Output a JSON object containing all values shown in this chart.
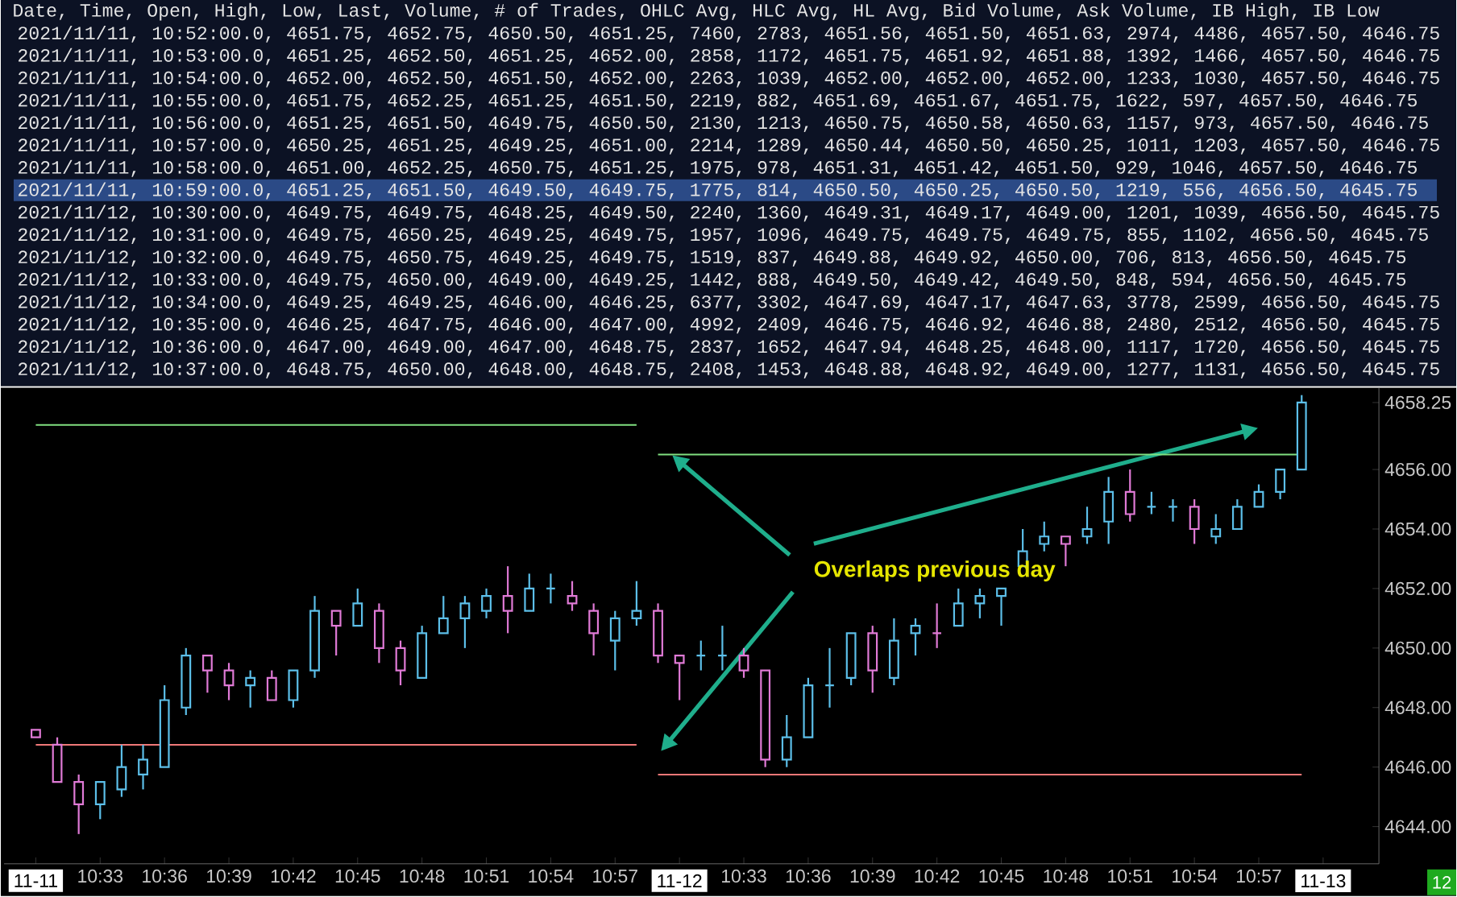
{
  "chart_data": {
    "type": "candlestick",
    "categories": [
      "11-11",
      null,
      null,
      "10:33",
      null,
      null,
      "10:36",
      null,
      null,
      "10:39",
      null,
      null,
      "10:42",
      null,
      null,
      "10:45",
      null,
      null,
      "10:48",
      null,
      null,
      "10:51",
      null,
      null,
      "10:54",
      null,
      null,
      "10:57",
      null,
      null,
      "11-12",
      null,
      null,
      "10:33",
      null,
      null,
      "10:36",
      null,
      null,
      "10:39",
      null,
      null,
      "10:42",
      null,
      null,
      "10:45",
      null,
      null,
      "10:48",
      null,
      null,
      "10:51",
      null,
      null,
      "10:54",
      null,
      null,
      "10:57",
      null,
      null,
      "11-13"
    ],
    "ohlc": [
      [
        4647.25,
        4647.25,
        4647.0,
        4647.0
      ],
      [
        4646.75,
        4647.0,
        4645.5,
        4645.5
      ],
      [
        4645.5,
        4645.75,
        4643.75,
        4644.75
      ],
      [
        4644.75,
        4645.5,
        4644.25,
        4645.5
      ],
      [
        4645.25,
        4646.75,
        4645.0,
        4646.0
      ],
      [
        4645.75,
        4646.75,
        4645.25,
        4646.25
      ],
      [
        4646.0,
        4648.75,
        4646.0,
        4648.25
      ],
      [
        4648.0,
        4650.0,
        4647.75,
        4649.75
      ],
      [
        4649.75,
        4649.75,
        4648.5,
        4649.25
      ],
      [
        4649.25,
        4649.5,
        4648.25,
        4648.75
      ],
      [
        4648.75,
        4649.25,
        4648.0,
        4649.0
      ],
      [
        4649.0,
        4649.25,
        4648.25,
        4648.25
      ],
      [
        4648.25,
        4649.25,
        4648.0,
        4649.25
      ],
      [
        4649.25,
        4651.75,
        4649.0,
        4651.25
      ],
      [
        4651.25,
        4651.25,
        4649.75,
        4650.75
      ],
      [
        4650.75,
        4652.0,
        4650.75,
        4651.5
      ],
      [
        4651.25,
        4651.5,
        4649.5,
        4650.0
      ],
      [
        4650.0,
        4650.25,
        4648.75,
        4649.25
      ],
      [
        4649.0,
        4650.75,
        4649.0,
        4650.5
      ],
      [
        4650.5,
        4651.75,
        4650.5,
        4651.0
      ],
      [
        4651.0,
        4651.75,
        4650.0,
        4651.5
      ],
      [
        4651.25,
        4652.0,
        4651.0,
        4651.75
      ],
      [
        4651.75,
        4652.75,
        4650.5,
        4651.25
      ],
      [
        4651.25,
        4652.5,
        4651.25,
        4652.0
      ],
      [
        4652.0,
        4652.5,
        4651.5,
        4652.0
      ],
      [
        4651.75,
        4652.25,
        4651.25,
        4651.5
      ],
      [
        4651.25,
        4651.5,
        4649.75,
        4650.5
      ],
      [
        4650.25,
        4651.25,
        4649.25,
        4651.0
      ],
      [
        4651.0,
        4652.25,
        4650.75,
        4651.25
      ],
      [
        4651.25,
        4651.5,
        4649.5,
        4649.75
      ],
      [
        4649.75,
        4649.75,
        4648.25,
        4649.5
      ],
      [
        4649.75,
        4650.25,
        4649.25,
        4649.75
      ],
      [
        4649.75,
        4650.75,
        4649.25,
        4649.75
      ],
      [
        4649.75,
        4650.0,
        4649.0,
        4649.25
      ],
      [
        4649.25,
        4649.25,
        4646.0,
        4646.25
      ],
      [
        4646.25,
        4647.75,
        4646.0,
        4647.0
      ],
      [
        4647.0,
        4649.0,
        4647.0,
        4648.75
      ],
      [
        4648.75,
        4650.0,
        4648.0,
        4648.75
      ],
      [
        4649.0,
        4650.5,
        4648.75,
        4650.5
      ],
      [
        4650.5,
        4650.75,
        4648.5,
        4649.25
      ],
      [
        4649.0,
        4651.0,
        4648.75,
        4650.25
      ],
      [
        4650.5,
        4651.0,
        4649.75,
        4650.75
      ],
      [
        4650.5,
        4651.5,
        4650.0,
        4650.5
      ],
      [
        4650.75,
        4652.0,
        4650.75,
        4651.5
      ],
      [
        4651.5,
        4652.0,
        4651.0,
        4651.75
      ],
      [
        4651.75,
        4652.0,
        4650.75,
        4652.0
      ],
      [
        4652.75,
        4654.0,
        4652.75,
        4653.25
      ],
      [
        4653.5,
        4654.25,
        4653.25,
        4653.75
      ],
      [
        4653.75,
        4653.75,
        4652.75,
        4653.5
      ],
      [
        4653.75,
        4654.75,
        4653.5,
        4654.0
      ],
      [
        4654.25,
        4655.75,
        4653.5,
        4655.25
      ],
      [
        4655.25,
        4656.0,
        4654.25,
        4654.5
      ],
      [
        4654.75,
        4655.25,
        4654.5,
        4654.75
      ],
      [
        4654.75,
        4655.0,
        4654.25,
        4654.75
      ],
      [
        4654.75,
        4655.0,
        4653.5,
        4654.0
      ],
      [
        4653.75,
        4654.5,
        4653.5,
        4654.0
      ],
      [
        4654.0,
        4655.0,
        4654.0,
        4654.75
      ],
      [
        4654.75,
        4655.5,
        4654.75,
        4655.25
      ],
      [
        4655.25,
        4656.0,
        4655.0,
        4656.0
      ],
      [
        4656.0,
        4658.5,
        4656.0,
        4658.25
      ],
      null
    ],
    "colors": [
      "#e07ad6",
      "#e07ad6",
      "#e07ad6",
      "#5cbfe9",
      "#5cbfe9",
      "#5cbfe9",
      "#5cbfe9",
      "#5cbfe9",
      "#e07ad6",
      "#e07ad6",
      "#5cbfe9",
      "#e07ad6",
      "#5cbfe9",
      "#5cbfe9",
      "#e07ad6",
      "#5cbfe9",
      "#e07ad6",
      "#e07ad6",
      "#5cbfe9",
      "#5cbfe9",
      "#5cbfe9",
      "#5cbfe9",
      "#e07ad6",
      "#5cbfe9",
      "#5cbfe9",
      "#e07ad6",
      "#e07ad6",
      "#5cbfe9",
      "#5cbfe9",
      "#e07ad6",
      "#e07ad6",
      "#5cbfe9",
      "#5cbfe9",
      "#e07ad6",
      "#e07ad6",
      "#5cbfe9",
      "#5cbfe9",
      "#5cbfe9",
      "#5cbfe9",
      "#e07ad6",
      "#5cbfe9",
      "#5cbfe9",
      "#e07ad6",
      "#5cbfe9",
      "#5cbfe9",
      "#5cbfe9",
      "#5cbfe9",
      "#5cbfe9",
      "#e07ad6",
      "#5cbfe9",
      "#5cbfe9",
      "#e07ad6",
      "#5cbfe9",
      "#5cbfe9",
      "#e07ad6",
      "#5cbfe9",
      "#5cbfe9",
      "#5cbfe9",
      "#5cbfe9",
      "#5cbfe9",
      null
    ],
    "series": [
      {
        "type": "line",
        "color": "#80e080",
        "values": [
          4657.5,
          4657.5,
          4657.5,
          4657.5,
          4657.5,
          4657.5,
          4657.5,
          4657.5,
          4657.5,
          4657.5,
          4657.5,
          4657.5,
          4657.5,
          4657.5,
          4657.5,
          4657.5,
          4657.5,
          4657.5,
          4657.5,
          4657.5,
          4657.5,
          4657.5,
          4657.5,
          4657.5,
          4657.5,
          4657.5,
          4657.5,
          4657.5,
          4657.5,
          null,
          null,
          null,
          null,
          null,
          null,
          null,
          null,
          null,
          null,
          null,
          null,
          null,
          null,
          null,
          null,
          null,
          null,
          null,
          null,
          null,
          null,
          null,
          null,
          null,
          null,
          null,
          null,
          null,
          null,
          null,
          null
        ]
      },
      {
        "type": "line",
        "color": "#f07878",
        "values": [
          4646.75,
          4646.75,
          4646.75,
          4646.75,
          4646.75,
          4646.75,
          4646.75,
          4646.75,
          4646.75,
          4646.75,
          4646.75,
          4646.75,
          4646.75,
          4646.75,
          4646.75,
          4646.75,
          4646.75,
          4646.75,
          4646.75,
          4646.75,
          4646.75,
          4646.75,
          4646.75,
          4646.75,
          4646.75,
          4646.75,
          4646.75,
          4646.75,
          4646.75,
          null,
          null,
          null,
          null,
          null,
          null,
          null,
          null,
          null,
          null,
          null,
          null,
          null,
          null,
          null,
          null,
          null,
          null,
          null,
          null,
          null,
          null,
          null,
          null,
          null,
          null,
          null,
          null,
          null,
          null,
          null,
          null
        ]
      },
      {
        "type": "line",
        "color": "#80e080",
        "values": [
          null,
          null,
          null,
          null,
          null,
          null,
          null,
          null,
          null,
          null,
          null,
          null,
          null,
          null,
          null,
          null,
          null,
          null,
          null,
          null,
          null,
          null,
          null,
          null,
          null,
          null,
          null,
          null,
          null,
          4656.5,
          4656.5,
          4656.5,
          4656.5,
          4656.5,
          4656.5,
          4656.5,
          4656.5,
          4656.5,
          4656.5,
          4656.5,
          4656.5,
          4656.5,
          4656.5,
          4656.5,
          4656.5,
          4656.5,
          4656.5,
          4656.5,
          4656.5,
          4656.5,
          4656.5,
          4656.5,
          4656.5,
          4656.5,
          4656.5,
          4656.5,
          4656.5,
          4656.5,
          4656.5,
          4656.5,
          null
        ]
      },
      {
        "type": "line",
        "color": "#f07878",
        "values": [
          null,
          null,
          null,
          null,
          null,
          null,
          null,
          null,
          null,
          null,
          null,
          null,
          null,
          null,
          null,
          null,
          null,
          null,
          null,
          null,
          null,
          null,
          null,
          null,
          null,
          null,
          null,
          null,
          null,
          4645.75,
          4645.75,
          4645.75,
          4645.75,
          4645.75,
          4645.75,
          4645.75,
          4645.75,
          4645.75,
          4645.75,
          4645.75,
          4645.75,
          4645.75,
          4645.75,
          4645.75,
          4645.75,
          4645.75,
          4645.75,
          4645.75,
          4645.75,
          4645.75,
          4645.75,
          4645.75,
          4645.75,
          4645.75,
          4645.75,
          4645.75,
          4645.75,
          4645.75,
          4645.75,
          4645.75,
          null
        ]
      }
    ],
    "ylim": [
      4642.75,
      4658.75
    ],
    "yticks": [
      {
        "value": 4644,
        "label": "4644.00"
      },
      {
        "value": 4646,
        "label": "4646.00"
      },
      {
        "value": 4648,
        "label": "4648.00"
      },
      {
        "value": 4650,
        "label": "4650.00"
      },
      {
        "value": 4652,
        "label": "4652.00"
      },
      {
        "value": 4654,
        "label": "4654.00"
      },
      {
        "value": 4656,
        "label": "4656.00"
      },
      4658.25
    ],
    "annotations": [
      "Date, Time, Open, High, Low, Last, Volume, # of Trades, OHLC Avg, HLC Avg, HL Avg, Bid Volume, Ask Volume, IB High, IB Low",
      "2021/11/11, 10:52:00.0, 4651.75, 4652.75, 4650.50, 4651.25, 7460, 2783, 4651.56, 4651.50, 4651.63, 2974, 4486, 4657.50, 4646.75",
      "2021/11/11, 10:53:00.0, 4651.25, 4652.50, 4651.25, 4652.00, 2858, 1172, 4651.75, 4651.92, 4651.88, 1392, 1466, 4657.50, 4646.75",
      "2021/11/11, 10:54:00.0, 4652.00, 4652.50, 4651.50, 4652.00, 2263, 1039, 4652.00, 4652.00, 4652.00, 1233, 1030, 4657.50, 4646.75",
      "2021/11/11, 10:55:00.0, 4651.75, 4652.25, 4651.25, 4651.50, 2219, 882, 4651.69, 4651.67, 4651.75, 1622, 597, 4657.50, 4646.75",
      "2021/11/11, 10:56:00.0, 4651.25, 4651.50, 4649.75, 4650.50, 2130, 1213, 4650.75, 4650.58, 4650.63, 1157, 973, 4657.50, 4646.75",
      "2021/11/11, 10:57:00.0, 4650.25, 4651.25, 4649.25, 4651.00, 2214, 1289, 4650.44, 4650.50, 4650.25, 1011, 1203, 4657.50, 4646.75",
      "2021/11/11, 10:58:00.0, 4651.00, 4652.25, 4650.75, 4651.25, 1975, 978, 4651.31, 4651.42, 4651.50, 929, 1046, 4657.50, 4646.75",
      "2021/11/11, 10:59:00.0, 4651.25, 4651.50, 4649.50, 4649.75, 1775, 814, 4650.50, 4650.25, 4650.50, 1219, 556, 4656.50, 4645.75",
      "2021/11/12, 10:30:00.0, 4649.75, 4649.75, 4648.25, 4649.50, 2240, 1360, 4649.31, 4649.17, 4649.00, 1201, 1039, 4656.50, 4645.75",
      "2021/11/12, 10:31:00.0, 4649.75, 4650.25, 4649.25, 4649.75, 1957, 1096, 4649.75, 4649.75, 4649.75, 855, 1102, 4656.50, 4645.75",
      "2021/11/12, 10:32:00.0, 4649.75, 4650.75, 4649.25, 4649.75, 1519, 837, 4649.88, 4649.92, 4650.00, 706, 813, 4656.50, 4645.75",
      "2021/11/12, 10:33:00.0, 4649.75, 4650.00, 4649.00, 4649.25, 1442, 888, 4649.50, 4649.42, 4649.50, 848, 594, 4656.50, 4645.75",
      "2021/11/12, 10:34:00.0, 4649.25, 4649.25, 4646.00, 4646.25, 6377, 3302, 4647.69, 4647.17, 4647.63, 3778, 2599, 4656.50, 4645.75",
      "2021/11/12, 10:35:00.0, 4646.25, 4647.75, 4646.00, 4647.00, 4992, 2409, 4646.75, 4646.92, 4646.88, 2480, 2512, 4656.50, 4645.75",
      "2021/11/12, 10:36:00.0, 4647.00, 4649.00, 4647.00, 4648.75, 2837, 1652, 4647.94, 4648.25, 4648.00, 1117, 1720, 4656.50, 4645.75",
      "2021/11/12, 10:37:00.0, 4648.75, 4650.00, 4648.00, 4648.75, 2408, 1453, 4648.88, 4648.92, 4649.00, 1277, 1131, 4656.50, 4645.75",
      "Overlaps previous day",
      "12"
    ]
  }
}
